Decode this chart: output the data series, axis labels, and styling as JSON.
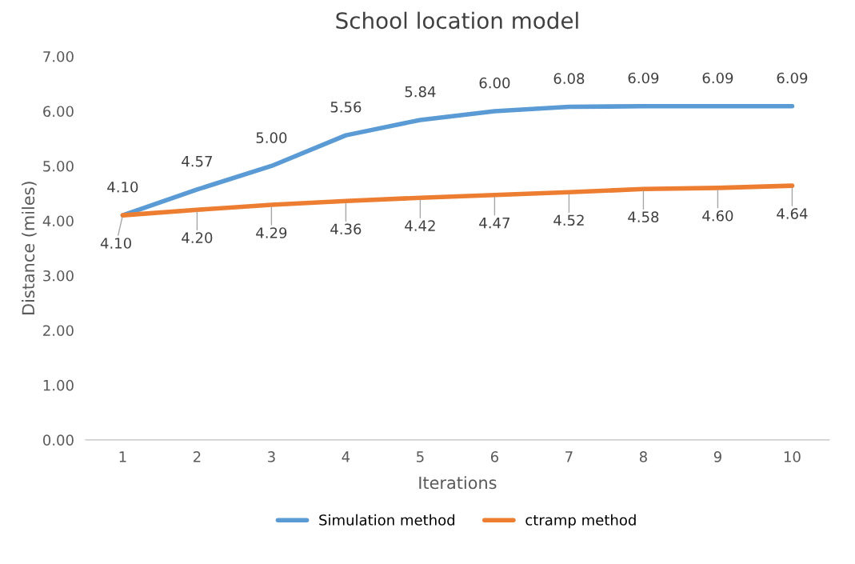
{
  "chart_data": {
    "type": "line",
    "title": "School location model",
    "xlabel": "Iterations",
    "ylabel": "Distance (miles)",
    "categories": [
      "1",
      "2",
      "3",
      "4",
      "5",
      "6",
      "7",
      "8",
      "9",
      "10"
    ],
    "series": [
      {
        "name": "Simulation method",
        "color": "#5b9bd5",
        "values": [
          4.1,
          4.57,
          5.0,
          5.56,
          5.84,
          6.0,
          6.08,
          6.09,
          6.09,
          6.09
        ],
        "value_labels": [
          "4.10",
          "4.57",
          "5.00",
          "5.56",
          "5.84",
          "6.00",
          "6.08",
          "6.09",
          "6.09",
          "6.09"
        ]
      },
      {
        "name": "ctramp method",
        "color": "#ed7d31",
        "values": [
          4.1,
          4.2,
          4.29,
          4.36,
          4.42,
          4.47,
          4.52,
          4.58,
          4.6,
          4.64
        ],
        "value_labels": [
          "4.10",
          "4.20",
          "4.29",
          "4.36",
          "4.42",
          "4.47",
          "4.52",
          "4.58",
          "4.60",
          "4.64"
        ]
      }
    ],
    "ylim": [
      0,
      7
    ],
    "yticks": [
      {
        "value": 0,
        "label": "0.00"
      },
      {
        "value": 1,
        "label": "1.00"
      },
      {
        "value": 2,
        "label": "2.00"
      },
      {
        "value": 3,
        "label": "3.00"
      },
      {
        "value": 4,
        "label": "4.00"
      },
      {
        "value": 5,
        "label": "5.00"
      },
      {
        "value": 6,
        "label": "6.00"
      },
      {
        "value": 7,
        "label": "7.00"
      }
    ],
    "grid": false,
    "legend": "bottom",
    "marker": "none",
    "line_style": "solid"
  }
}
